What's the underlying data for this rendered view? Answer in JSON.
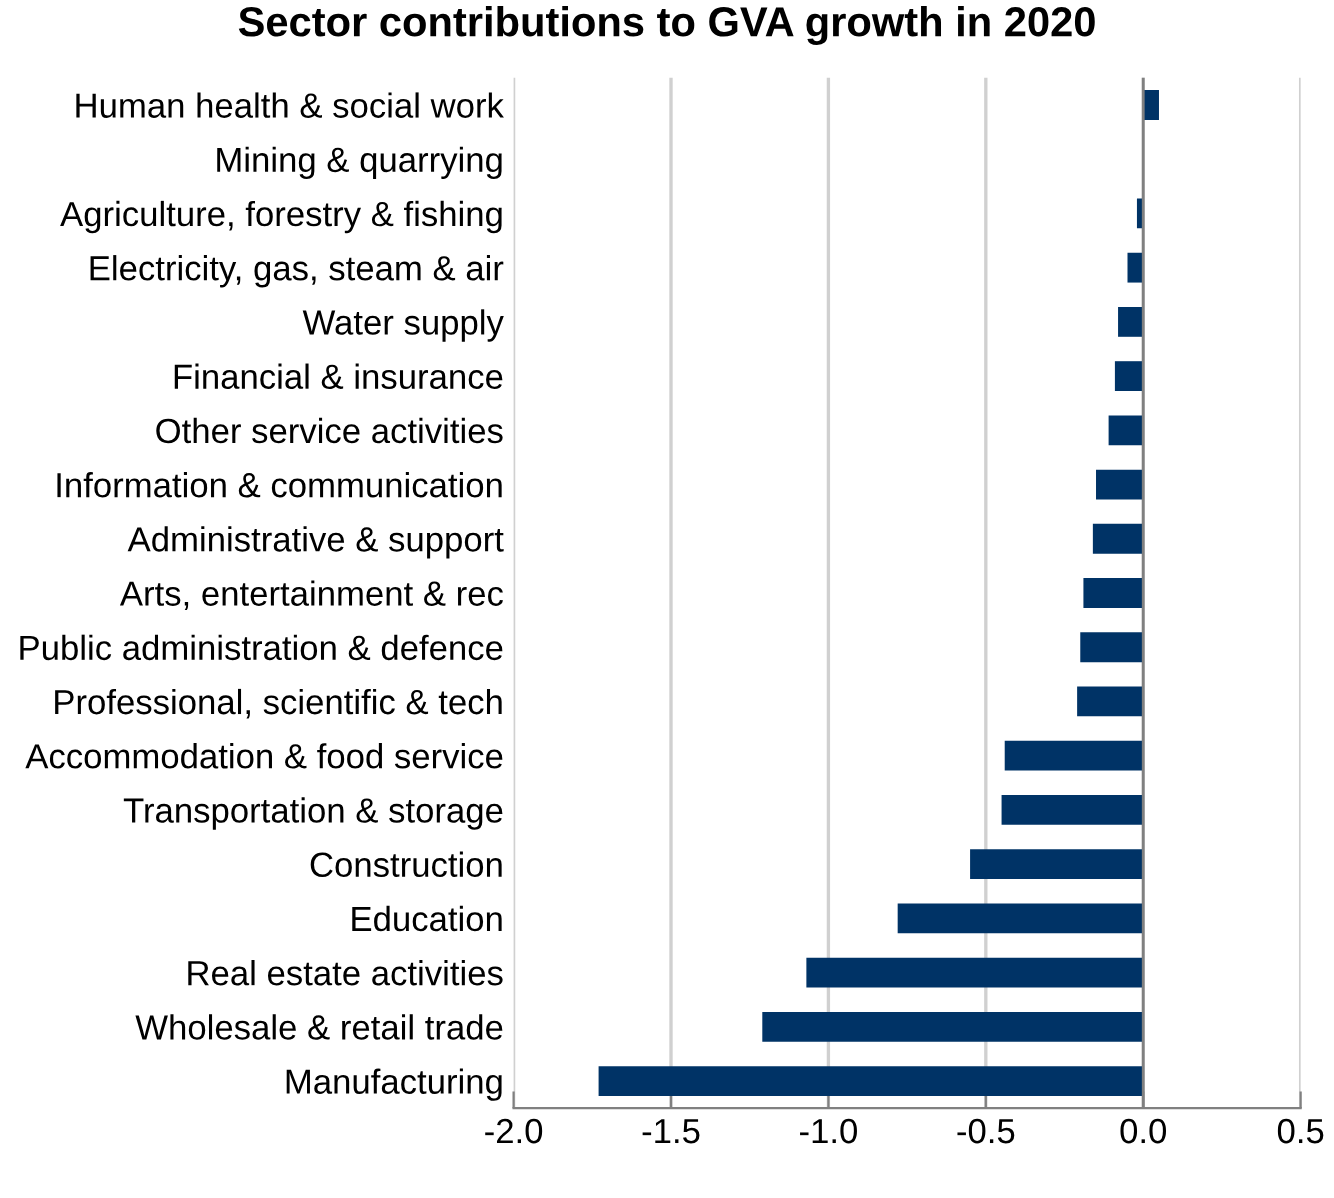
{
  "chart_data": {
    "type": "bar",
    "orientation": "horizontal",
    "title": "Sector contributions to GVA growth in 2020",
    "categories": [
      "Human health & social work",
      "Mining & quarrying",
      "Agriculture, forestry & fishing",
      "Electricity, gas, steam & air",
      "Water supply",
      "Financial & insurance",
      "Other service activities",
      "Information & communication",
      "Administrative & support",
      "Arts, entertainment & rec",
      "Public administration & defence",
      "Professional, scientific & tech",
      "Accommodation & food service",
      "Transportation & storage",
      "Construction",
      "Education",
      "Real estate activities",
      "Wholesale & retail trade",
      "Manufacturing"
    ],
    "values": [
      0.05,
      0.0,
      -0.02,
      -0.05,
      -0.08,
      -0.09,
      -0.11,
      -0.15,
      -0.16,
      -0.19,
      -0.2,
      -0.21,
      -0.44,
      -0.45,
      -0.55,
      -0.78,
      -1.07,
      -1.21,
      -1.73
    ],
    "color": "#003366",
    "xlim": [
      -2.0,
      0.5
    ],
    "xticks": [
      {
        "value": -2.0,
        "label": "-2.0"
      },
      {
        "value": -1.5,
        "label": "-1.5"
      },
      {
        "value": -1.0,
        "label": "-1.0"
      },
      {
        "value": -0.5,
        "label": "-0.5"
      },
      {
        "value": 0.0,
        "label": "0.0"
      },
      {
        "value": 0.5,
        "label": "0.5"
      }
    ],
    "grid": "x"
  }
}
